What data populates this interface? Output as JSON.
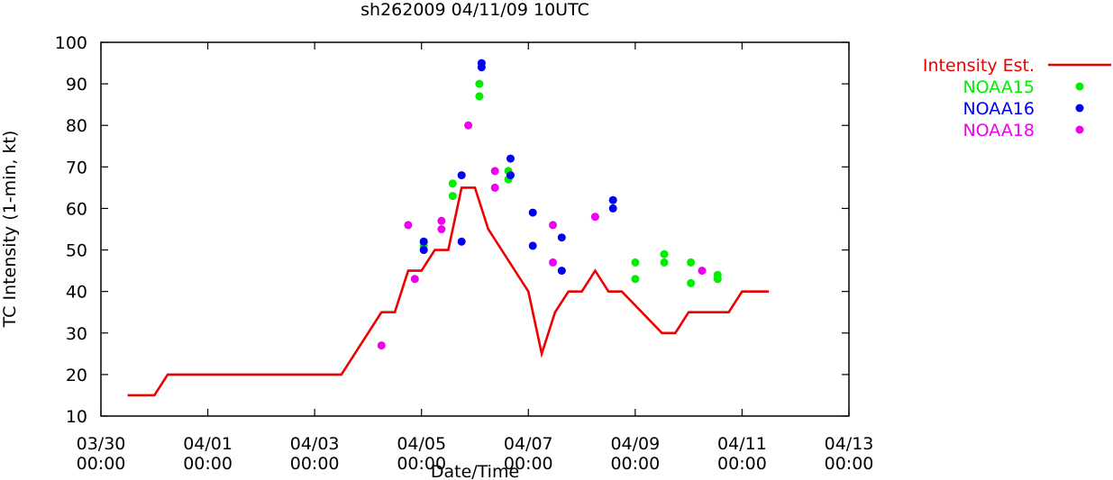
{
  "chart_data": {
    "type": "scatter",
    "title": "sh262009 04/11/09 10UTC",
    "xlabel": "Date/Time",
    "ylabel": "TC Intensity (1-min, kt)",
    "xlim": [
      "2009-03-30 00:00",
      "2009-04-13 00:00"
    ],
    "ylim": [
      10,
      100
    ],
    "y_ticks": [
      10,
      20,
      30,
      40,
      50,
      60,
      70,
      80,
      90,
      100
    ],
    "x_ticks": [
      {
        "x": "2009-03-30 00:00",
        "label_date": "03/30",
        "label_time": "00:00"
      },
      {
        "x": "2009-04-01 00:00",
        "label_date": "04/01",
        "label_time": "00:00"
      },
      {
        "x": "2009-04-03 00:00",
        "label_date": "04/03",
        "label_time": "00:00"
      },
      {
        "x": "2009-04-05 00:00",
        "label_date": "04/05",
        "label_time": "00:00"
      },
      {
        "x": "2009-04-07 00:00",
        "label_date": "04/07",
        "label_time": "00:00"
      },
      {
        "x": "2009-04-09 00:00",
        "label_date": "04/09",
        "label_time": "00:00"
      },
      {
        "x": "2009-04-11 00:00",
        "label_date": "04/11",
        "label_time": "00:00"
      },
      {
        "x": "2009-04-13 00:00",
        "label_date": "04/13",
        "label_time": "00:00"
      }
    ],
    "grid": false,
    "legend_position": "outside-right",
    "series": [
      {
        "name": "Intensity Est.",
        "style": "line",
        "color": "#ee0000",
        "points": [
          [
            "2009-03-30 12:00",
            15
          ],
          [
            "2009-03-31 00:00",
            15
          ],
          [
            "2009-03-31 06:00",
            20
          ],
          [
            "2009-04-03 12:00",
            20
          ],
          [
            "2009-04-04 06:00",
            35
          ],
          [
            "2009-04-04 12:00",
            35
          ],
          [
            "2009-04-04 18:00",
            45
          ],
          [
            "2009-04-05 00:00",
            45
          ],
          [
            "2009-04-05 06:00",
            50
          ],
          [
            "2009-04-05 12:00",
            50
          ],
          [
            "2009-04-05 18:00",
            65
          ],
          [
            "2009-04-06 00:00",
            65
          ],
          [
            "2009-04-06 06:00",
            55
          ],
          [
            "2009-04-07 00:00",
            40
          ],
          [
            "2009-04-07 06:00",
            25
          ],
          [
            "2009-04-07 12:00",
            35
          ],
          [
            "2009-04-07 18:00",
            40
          ],
          [
            "2009-04-08 00:00",
            40
          ],
          [
            "2009-04-08 06:00",
            45
          ],
          [
            "2009-04-08 12:00",
            40
          ],
          [
            "2009-04-08 18:00",
            40
          ],
          [
            "2009-04-09 12:00",
            30
          ],
          [
            "2009-04-09 18:00",
            30
          ],
          [
            "2009-04-10 00:00",
            35
          ],
          [
            "2009-04-10 18:00",
            35
          ],
          [
            "2009-04-11 00:00",
            40
          ],
          [
            "2009-04-11 12:00",
            40
          ]
        ]
      },
      {
        "name": "NOAA15",
        "style": "points",
        "color": "#00ee00",
        "points": [
          [
            "2009-04-05 01:00",
            52
          ],
          [
            "2009-04-05 01:00",
            51
          ],
          [
            "2009-04-05 14:00",
            66
          ],
          [
            "2009-04-05 14:00",
            63
          ],
          [
            "2009-04-06 02:00",
            90
          ],
          [
            "2009-04-06 02:00",
            87
          ],
          [
            "2009-04-06 15:00",
            69
          ],
          [
            "2009-04-06 15:00",
            67
          ],
          [
            "2009-04-09 00:00",
            47
          ],
          [
            "2009-04-09 00:00",
            43
          ],
          [
            "2009-04-09 13:00",
            49
          ],
          [
            "2009-04-09 13:00",
            47
          ],
          [
            "2009-04-10 01:00",
            47
          ],
          [
            "2009-04-10 01:00",
            42
          ],
          [
            "2009-04-10 13:00",
            44
          ],
          [
            "2009-04-10 13:00",
            43
          ]
        ]
      },
      {
        "name": "NOAA16",
        "style": "points",
        "color": "#0000ee",
        "points": [
          [
            "2009-04-05 01:00",
            52
          ],
          [
            "2009-04-05 01:00",
            50
          ],
          [
            "2009-04-05 18:00",
            68
          ],
          [
            "2009-04-05 18:00",
            52
          ],
          [
            "2009-04-06 03:00",
            95
          ],
          [
            "2009-04-06 03:00",
            94
          ],
          [
            "2009-04-06 16:00",
            72
          ],
          [
            "2009-04-06 16:00",
            68
          ],
          [
            "2009-04-07 02:00",
            59
          ],
          [
            "2009-04-07 02:00",
            51
          ],
          [
            "2009-04-07 15:00",
            53
          ],
          [
            "2009-04-07 15:00",
            45
          ],
          [
            "2009-04-08 14:00",
            62
          ],
          [
            "2009-04-08 14:00",
            60
          ]
        ]
      },
      {
        "name": "NOAA18",
        "style": "points",
        "color": "#ee00ee",
        "points": [
          [
            "2009-04-04 06:00",
            27
          ],
          [
            "2009-04-04 18:00",
            56
          ],
          [
            "2009-04-04 21:00",
            43
          ],
          [
            "2009-04-05 09:00",
            57
          ],
          [
            "2009-04-05 09:00",
            55
          ],
          [
            "2009-04-05 21:00",
            80
          ],
          [
            "2009-04-06 09:00",
            69
          ],
          [
            "2009-04-06 09:00",
            65
          ],
          [
            "2009-04-07 11:00",
            56
          ],
          [
            "2009-04-07 11:00",
            47
          ],
          [
            "2009-04-08 06:00",
            58
          ],
          [
            "2009-04-10 06:00",
            45
          ]
        ]
      }
    ]
  }
}
